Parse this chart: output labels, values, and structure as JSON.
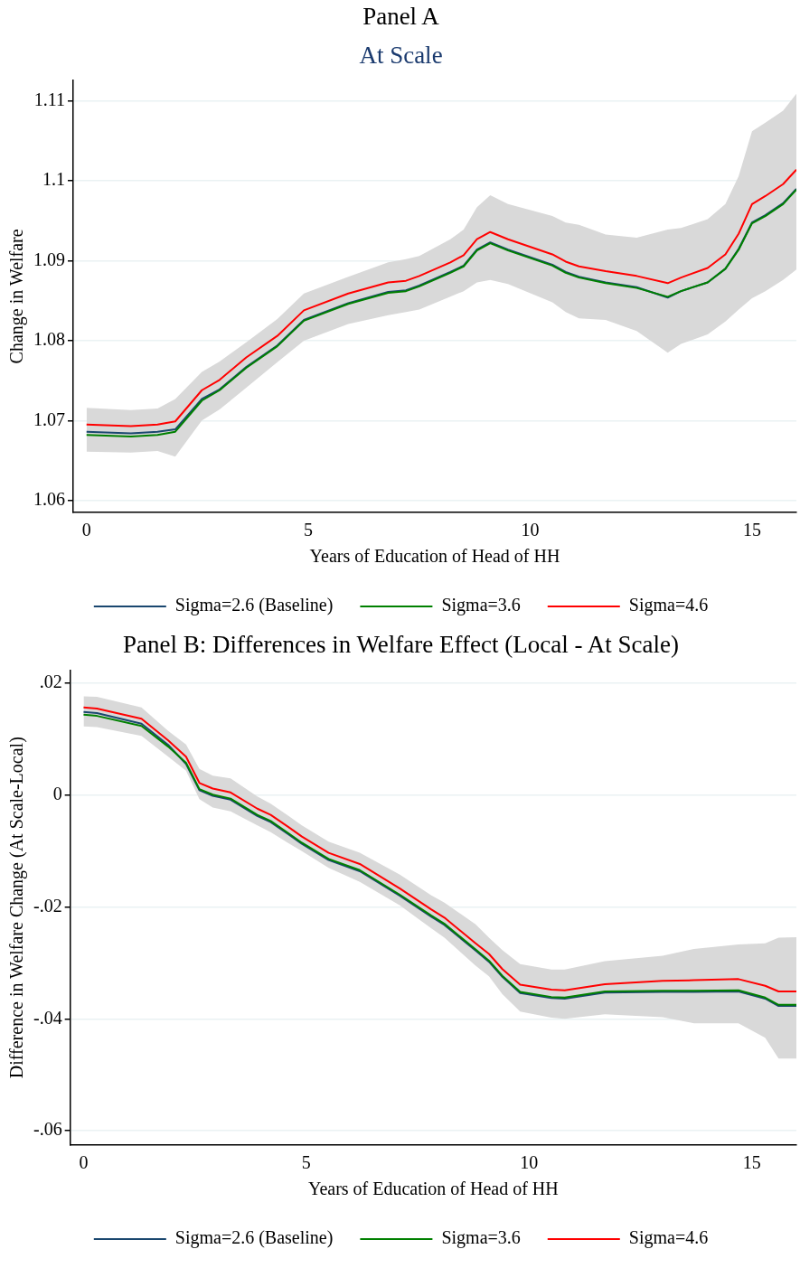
{
  "chart_data": [
    {
      "type": "line",
      "title": "Panel A",
      "subtitle": "At Scale",
      "xlabel": "Years of Education of Head of HH",
      "ylabel": "Change in Welfare",
      "x": [
        0,
        1,
        1.6,
        2,
        2.6,
        3,
        3.6,
        4.3,
        4.9,
        5.9,
        6.8,
        7.2,
        7.5,
        8.2,
        8.5,
        8.8,
        9.1,
        9.5,
        10.5,
        10.8,
        11.1,
        11.7,
        12.4,
        13.1,
        13.4,
        14,
        14.4,
        14.7,
        15,
        15.3,
        15.7,
        16
      ],
      "series": [
        {
          "name": "Sigma=2.6 (Baseline)",
          "color": "#1a476f",
          "values": [
            1.0686,
            1.0684,
            1.0686,
            1.0689,
            1.0727,
            1.0739,
            1.0767,
            1.0794,
            1.0826,
            1.0847,
            1.0861,
            1.0863,
            1.0869,
            1.0886,
            1.0894,
            1.0914,
            1.0923,
            1.0914,
            1.0895,
            1.0886,
            1.088,
            1.0873,
            1.0867,
            1.0854,
            1.0862,
            1.0873,
            1.089,
            1.0915,
            1.0948,
            1.0957,
            1.0972,
            1.099
          ]
        },
        {
          "name": "Sigma=3.6",
          "color": "#008000",
          "values": [
            1.0682,
            1.068,
            1.0682,
            1.0686,
            1.0725,
            1.0738,
            1.0766,
            1.0793,
            1.0825,
            1.0846,
            1.086,
            1.0862,
            1.0868,
            1.0885,
            1.0893,
            1.0913,
            1.0922,
            1.0913,
            1.0894,
            1.0885,
            1.0879,
            1.0872,
            1.0866,
            1.0855,
            1.0862,
            1.0873,
            1.089,
            1.0914,
            1.0947,
            1.0956,
            1.0971,
            1.0989
          ]
        },
        {
          "name": "Sigma=4.6",
          "color": "#ff0000",
          "values": [
            1.0695,
            1.0693,
            1.0695,
            1.0699,
            1.0738,
            1.0751,
            1.0779,
            1.0806,
            1.0838,
            1.0859,
            1.0873,
            1.0875,
            1.0881,
            1.0898,
            1.0907,
            1.0927,
            1.0936,
            1.0927,
            1.0908,
            1.0899,
            1.0893,
            1.0887,
            1.0881,
            1.0872,
            1.0879,
            1.0891,
            1.0908,
            1.0934,
            1.0971,
            1.0981,
            1.0996,
            1.1014
          ],
          "upper": [
            1.0716,
            1.0713,
            1.0715,
            1.0727,
            1.0761,
            1.0774,
            1.0798,
            1.0827,
            1.0859,
            1.088,
            1.0898,
            1.0902,
            1.0906,
            1.0927,
            1.0939,
            1.0967,
            1.0982,
            1.0971,
            1.0956,
            1.0948,
            1.0945,
            1.0933,
            1.0929,
            1.0939,
            1.0941,
            1.0952,
            1.0971,
            1.1006,
            1.1062,
            1.1073,
            1.1088,
            1.1109
          ],
          "lower": [
            1.0661,
            1.066,
            1.0662,
            1.0655,
            1.07,
            1.0714,
            1.0741,
            1.0773,
            1.08,
            1.0821,
            1.0832,
            1.0836,
            1.0839,
            1.0855,
            1.0862,
            1.0873,
            1.0876,
            1.0871,
            1.0848,
            1.0836,
            1.0828,
            1.0826,
            1.0812,
            1.0785,
            1.0796,
            1.0808,
            1.0824,
            1.0839,
            1.0853,
            1.0862,
            1.0876,
            1.0889
          ]
        }
      ],
      "xlim": [
        -0.3,
        16
      ],
      "ylim": [
        1.0585,
        1.1126
      ],
      "xticks": [
        0,
        5,
        10,
        15
      ],
      "yticks": [
        1.06,
        1.07,
        1.08,
        1.09,
        1.1,
        1.11
      ],
      "grid": "y",
      "legend": "bottom",
      "line_style": "solid"
    },
    {
      "type": "line",
      "title": "Panel B: Differences in Welfare Effect (Local - At Scale)",
      "xlabel": "Years of Education of Head of HH",
      "ylabel": "Difference in Welfare Change (At Scale-Local)",
      "x": [
        0,
        0.3,
        1.3,
        1.9,
        2.3,
        2.6,
        2.9,
        3.3,
        3.9,
        4.2,
        4.6,
        4.9,
        5.5,
        6.2,
        7.1,
        7.8,
        8.1,
        8.8,
        9.1,
        9.4,
        9.8,
        10.5,
        10.8,
        11.7,
        13,
        13.7,
        14.7,
        15.3,
        15.6,
        16
      ],
      "series": [
        {
          "name": "Sigma=2.6 (Baseline)",
          "color": "#1a476f",
          "values": [
            0.0149,
            0.0147,
            0.0128,
            0.009,
            0.0056,
            0.0009,
            -0.0001,
            -0.0008,
            -0.0037,
            -0.0048,
            -0.007,
            -0.0087,
            -0.0116,
            -0.0136,
            -0.018,
            -0.0217,
            -0.0232,
            -0.0278,
            -0.0298,
            -0.0325,
            -0.0354,
            -0.0363,
            -0.0364,
            -0.0353,
            -0.0352,
            -0.0352,
            -0.0351,
            -0.0364,
            -0.0377,
            -0.0377
          ]
        },
        {
          "name": "Sigma=3.6",
          "color": "#008000",
          "values": [
            0.0144,
            0.0142,
            0.0124,
            0.0087,
            0.0058,
            0.0011,
            0.0001,
            -0.0006,
            -0.0035,
            -0.0046,
            -0.0068,
            -0.0085,
            -0.0114,
            -0.0134,
            -0.0178,
            -0.0215,
            -0.023,
            -0.0276,
            -0.0296,
            -0.0323,
            -0.0352,
            -0.0361,
            -0.0362,
            -0.0351,
            -0.035,
            -0.035,
            -0.0349,
            -0.0362,
            -0.0375,
            -0.0375
          ]
        },
        {
          "name": "Sigma=4.6",
          "color": "#ff0000",
          "values": [
            0.0157,
            0.0155,
            0.0137,
            0.0098,
            0.0069,
            0.0022,
            0.0012,
            0.0005,
            -0.0024,
            -0.0035,
            -0.0057,
            -0.0074,
            -0.0103,
            -0.0123,
            -0.0167,
            -0.0204,
            -0.0219,
            -0.0265,
            -0.0284,
            -0.0311,
            -0.0339,
            -0.0348,
            -0.0349,
            -0.0338,
            -0.0332,
            -0.0331,
            -0.0329,
            -0.0341,
            -0.0351,
            -0.0351
          ],
          "upper": [
            0.0177,
            0.0176,
            0.0157,
            0.0115,
            0.0091,
            0.0047,
            0.0035,
            0.003,
            -0.0002,
            -0.0015,
            -0.0037,
            -0.0054,
            -0.0083,
            -0.0103,
            -0.0142,
            -0.0179,
            -0.0192,
            -0.0231,
            -0.0255,
            -0.0277,
            -0.0302,
            -0.0312,
            -0.0312,
            -0.0297,
            -0.0287,
            -0.0275,
            -0.0267,
            -0.0265,
            -0.0255,
            -0.0254
          ],
          "lower": [
            0.0123,
            0.0122,
            0.0106,
            0.0069,
            0.0044,
            -0.0007,
            -0.0022,
            -0.0029,
            -0.0054,
            -0.0066,
            -0.0086,
            -0.01,
            -0.013,
            -0.0155,
            -0.0197,
            -0.0238,
            -0.0255,
            -0.0305,
            -0.0324,
            -0.0356,
            -0.0387,
            -0.0398,
            -0.04,
            -0.0392,
            -0.0397,
            -0.0408,
            -0.0408,
            -0.0434,
            -0.0471,
            -0.0471
          ]
        }
      ],
      "xlim": [
        -0.3,
        16
      ],
      "ylim": [
        -0.0626,
        0.0224
      ],
      "xticks": [
        0,
        5,
        10,
        15
      ],
      "yticks": [
        {
          "value": -0.06,
          "label": "-.06"
        },
        {
          "value": -0.04,
          "label": "-.04"
        },
        {
          "value": -0.02,
          "label": "-.02"
        },
        0,
        {
          "value": 0.02,
          "label": ".02"
        }
      ],
      "grid": "y",
      "legend": "bottom",
      "line_style": "solid"
    }
  ]
}
